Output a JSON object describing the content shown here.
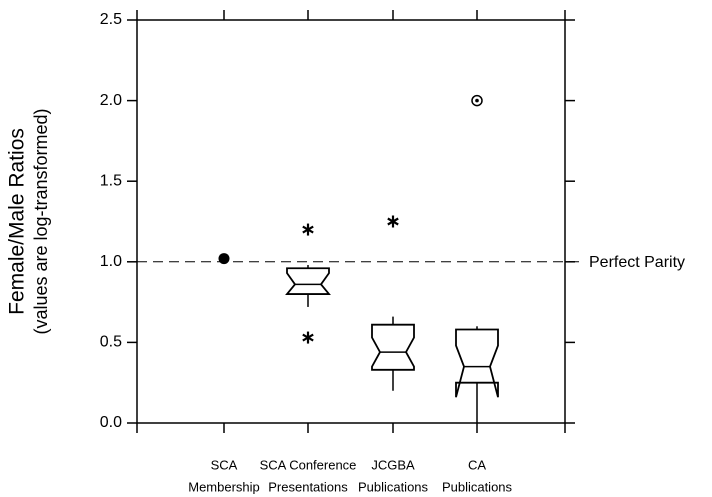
{
  "chart_data": {
    "type": "notched-box",
    "y_label_lines": [
      "Female/Male Ratios",
      "(values are log-transformed)"
    ],
    "categories": [
      [
        "SCA",
        "Membership"
      ],
      [
        "SCA Conference",
        "Presentations"
      ],
      [
        "JCGBA",
        "Publications"
      ],
      [
        "CA",
        "Publications"
      ]
    ],
    "ylim": [
      0,
      2.5
    ],
    "yticks": [
      {
        "value": 0,
        "label": "0.0"
      },
      0.5,
      {
        "value": 1,
        "label": "1.0"
      },
      1.5,
      {
        "value": 2,
        "label": "2.0"
      },
      2.5
    ],
    "reference_line": {
      "value": 1,
      "label": "Perfect Parity"
    },
    "boxes": [
      {
        "outliers": [
          {
            "value": 1.02,
            "marker": "dot"
          }
        ]
      },
      {
        "q1": 0.8,
        "median": 0.86,
        "q3": 0.96,
        "notch_low": 0.8,
        "notch_high": 0.93,
        "whisker_low": 0.72,
        "whisker_high": 0.98,
        "outliers": [
          {
            "value": 1.2,
            "marker": "star"
          },
          {
            "value": 0.53,
            "marker": "star"
          }
        ]
      },
      {
        "q1": 0.33,
        "median": 0.44,
        "q3": 0.61,
        "notch_low": 0.35,
        "notch_high": 0.53,
        "whisker_low": 0.2,
        "whisker_high": 0.66,
        "outliers": [
          {
            "value": 1.25,
            "marker": "star"
          }
        ]
      },
      {
        "q1": 0.25,
        "median": 0.35,
        "q3": 0.58,
        "notch_low": 0.16,
        "notch_high": 0.48,
        "whisker_low": 0,
        "whisker_high": 0.6,
        "outliers": [
          {
            "value": 2.0,
            "marker": "circle"
          }
        ]
      }
    ]
  }
}
